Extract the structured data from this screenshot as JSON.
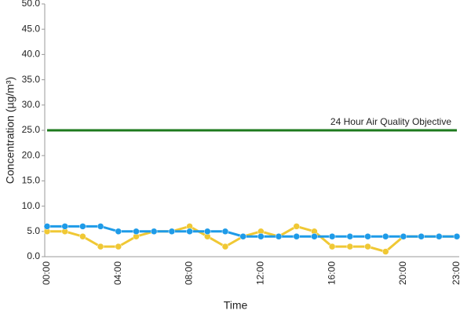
{
  "chart_data": {
    "type": "line",
    "x_label": "Time",
    "y_label": "Concentration (µg/m³)",
    "categories": [
      "00:00",
      null,
      null,
      null,
      "04:00",
      null,
      null,
      null,
      "08:00",
      null,
      null,
      null,
      "12:00",
      null,
      null,
      null,
      "16:00",
      null,
      null,
      null,
      "20:00",
      null,
      null,
      "23:00"
    ],
    "series": [
      {
        "color": "#f0c834",
        "values": [
          5,
          5,
          4,
          2,
          2,
          4,
          5,
          5,
          6,
          4,
          2,
          4,
          5,
          4,
          6,
          5,
          2,
          2,
          2,
          1,
          4,
          4,
          4,
          4
        ]
      },
      {
        "color": "#1e9be8",
        "values": [
          6,
          6,
          6,
          6,
          5,
          5,
          5,
          5,
          5,
          5,
          5,
          4,
          4,
          4,
          4,
          4,
          4,
          4,
          4,
          4,
          4,
          4,
          4,
          4
        ]
      }
    ],
    "objective": {
      "value": 25,
      "label": "24 Hour Air Quality Objective",
      "color": "#1d7a1d"
    },
    "ylim": [
      0,
      50
    ],
    "yticks": [
      {
        "value": 0,
        "label": "0.0"
      },
      {
        "value": 5,
        "label": "5.0"
      },
      {
        "value": 10,
        "label": "10.0"
      },
      {
        "value": 15,
        "label": "15.0"
      },
      {
        "value": 20,
        "label": "20.0"
      },
      {
        "value": 25,
        "label": "25.0"
      },
      {
        "value": 30,
        "label": "30.0"
      },
      {
        "value": 35,
        "label": "35.0"
      },
      {
        "value": 40,
        "label": "40.0"
      },
      {
        "value": 45,
        "label": "45.0"
      },
      {
        "value": 50,
        "label": "50.0"
      }
    ],
    "grid": false
  }
}
